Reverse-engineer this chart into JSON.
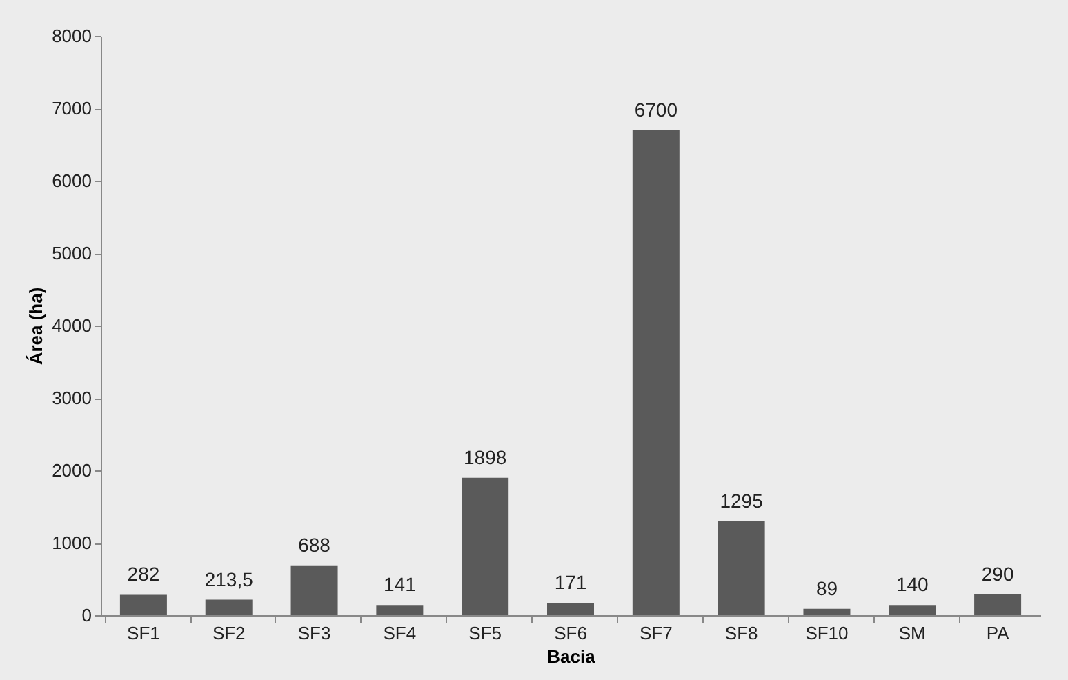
{
  "chart_data": {
    "type": "bar",
    "xlabel": "Bacia",
    "ylabel": "Área (ha)",
    "categories": [
      "SF1",
      "SF2",
      "SF3",
      "SF4",
      "SF5",
      "SF6",
      "SF7",
      "SF8",
      "SF10",
      "SM",
      "PA"
    ],
    "values": [
      282,
      213.5,
      688,
      141,
      1898,
      171,
      6700,
      1295,
      89,
      140,
      290
    ],
    "value_labels": [
      "282",
      "213,5",
      "688",
      "141",
      "1898",
      "171",
      "6700",
      "1295",
      "89",
      "140",
      "290"
    ],
    "color": "#5a5a5a",
    "ylim": [
      0,
      8000
    ],
    "yticks": [
      0,
      1000,
      2000,
      3000,
      4000,
      5000,
      6000,
      7000,
      8000
    ],
    "grid": false
  }
}
